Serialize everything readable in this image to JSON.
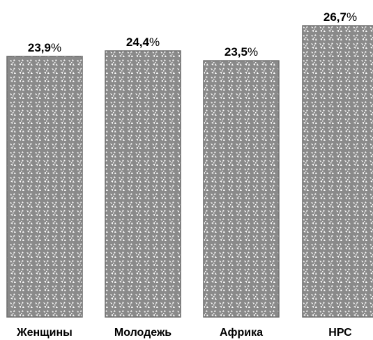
{
  "chart_data": {
    "type": "bar",
    "categories": [
      "Женщины",
      "Молодежь",
      "Африка",
      "НРС"
    ],
    "values": [
      23.9,
      24.4,
      23.5,
      26.7
    ],
    "value_labels": [
      "23,9",
      "24,4",
      "23,5",
      "26,7"
    ],
    "unit": "%",
    "title": "",
    "xlabel": "",
    "ylabel": "",
    "ylim": [
      0,
      26.7
    ],
    "grid": false,
    "bar_color": "#8a8a8a",
    "bar_pattern_color": "#ffffff",
    "bar_border_color": "#6e6e6e"
  }
}
